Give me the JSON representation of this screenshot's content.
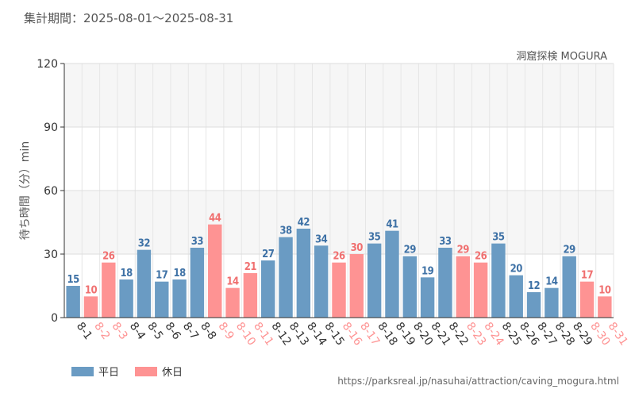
{
  "header": {
    "period_label": "集計期間：2025-08-01～2025-08-31",
    "subtitle": "洞窟探検 MOGURA",
    "credit": "https://parksreal.jp/nasuhai/attraction/caving_mogura.html"
  },
  "legend": {
    "weekday_label": "平日",
    "holiday_label": "休日"
  },
  "colors": {
    "weekday": "#6a9bc3",
    "holiday": "#fe9393",
    "weekday_text": "#3f72a6",
    "holiday_text": "#f07070"
  },
  "chart_data": {
    "type": "bar",
    "title": "",
    "ylabel": "待ち時間（分）min",
    "xlabel": "",
    "ylim": [
      0,
      120
    ],
    "yticks": [
      0,
      30,
      60,
      90,
      120
    ],
    "grid": true,
    "legend_position": "bottom-left",
    "categories": [
      "8-1",
      "8-2",
      "8-3",
      "8-4",
      "8-5",
      "8-6",
      "8-7",
      "8-8",
      "8-9",
      "8-10",
      "8-11",
      "8-12",
      "8-13",
      "8-14",
      "8-15",
      "8-16",
      "8-17",
      "8-18",
      "8-19",
      "8-20",
      "8-21",
      "8-22",
      "8-23",
      "8-24",
      "8-25",
      "8-26",
      "8-27",
      "8-28",
      "8-29",
      "8-30",
      "8-31"
    ],
    "values": [
      15,
      10,
      26,
      18,
      32,
      17,
      18,
      33,
      44,
      14,
      21,
      27,
      38,
      42,
      34,
      26,
      30,
      35,
      41,
      29,
      19,
      33,
      29,
      26,
      35,
      20,
      12,
      14,
      29,
      17,
      10
    ],
    "day_type": [
      "weekday",
      "holiday",
      "holiday",
      "weekday",
      "weekday",
      "weekday",
      "weekday",
      "weekday",
      "holiday",
      "holiday",
      "holiday",
      "weekday",
      "weekday",
      "weekday",
      "weekday",
      "holiday",
      "holiday",
      "weekday",
      "weekday",
      "weekday",
      "weekday",
      "weekday",
      "holiday",
      "holiday",
      "weekday",
      "weekday",
      "weekday",
      "weekday",
      "weekday",
      "holiday",
      "holiday"
    ]
  }
}
